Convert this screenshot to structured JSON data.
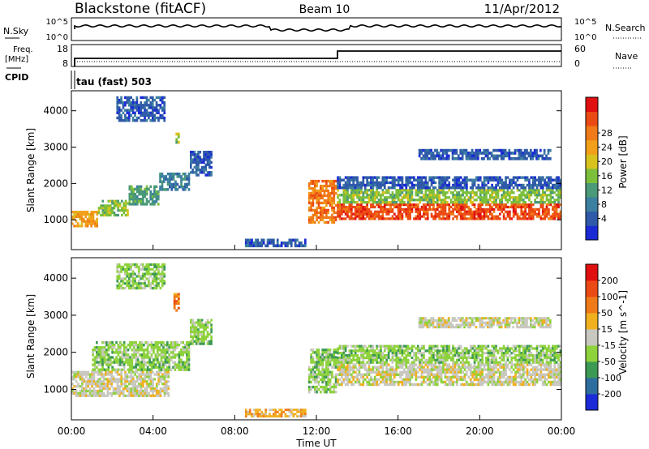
{
  "header": {
    "station": "Blackstone (fitACF)",
    "beam": "Beam 10",
    "date": "11/Apr/2012"
  },
  "noise_panel": {
    "left_label": "N.Sky",
    "right_label": "N.Search",
    "left_ticks": [
      "10^5",
      "10^0"
    ],
    "right_ticks": [
      "10^5",
      "10^0"
    ]
  },
  "freq_panel": {
    "left_label_1": "Freq.",
    "left_label_2": "[MHz]",
    "cpid_label": "CPID",
    "left_ticks": [
      "18",
      "8"
    ],
    "right_label": "Nave",
    "right_ticks": [
      "60",
      "0"
    ]
  },
  "cpid_panel": {
    "text": "tau (fast) 503"
  },
  "time_axis": {
    "ticks": [
      "00:00",
      "04:00",
      "08:00",
      "12:00",
      "16:00",
      "20:00",
      "00:00"
    ],
    "label": "Time UT"
  },
  "chart_data": [
    {
      "type": "heatmap",
      "ylabel": "Slant Range [km]",
      "x_range_hours": [
        0,
        24
      ],
      "ylim": [
        180,
        4550
      ],
      "y_ticks": [
        "1000",
        "2000",
        "3000",
        "4000"
      ],
      "y_tick_values": [
        1000,
        2000,
        3000,
        4000
      ],
      "colorbar": {
        "label": "Power [dB]",
        "ticks": [
          "4",
          "8",
          "12",
          "16",
          "20",
          "24",
          "28"
        ],
        "colors": [
          "#1a2bd6",
          "#2f5aa8",
          "#3c7fa0",
          "#4a9978",
          "#7cbf3a",
          "#d7c21e",
          "#f2a01a",
          "#f07a18",
          "#ec4a14",
          "#e01010"
        ]
      },
      "regions": [
        {
          "t": [
            0.0,
            1.3
          ],
          "r": [
            800,
            1250
          ],
          "level": 6
        },
        {
          "t": [
            1.3,
            2.8
          ],
          "r": [
            1100,
            1550
          ],
          "level": 4
        },
        {
          "t": [
            2.8,
            4.3
          ],
          "r": [
            1400,
            1950
          ],
          "level": 3
        },
        {
          "t": [
            4.3,
            5.8
          ],
          "r": [
            1800,
            2300
          ],
          "level": 2
        },
        {
          "t": [
            5.8,
            6.9
          ],
          "r": [
            2200,
            2900
          ],
          "level": 1
        },
        {
          "t": [
            2.2,
            4.6
          ],
          "r": [
            3700,
            4400
          ],
          "level": 1
        },
        {
          "t": [
            5.0,
            5.3
          ],
          "r": [
            3100,
            3400
          ],
          "level": 4
        },
        {
          "t": [
            8.5,
            11.5
          ],
          "r": [
            250,
            480
          ],
          "level": 1
        },
        {
          "t": [
            11.6,
            13.0
          ],
          "r": [
            900,
            2100
          ],
          "level": 7
        },
        {
          "t": [
            13.0,
            24.0
          ],
          "r": [
            1000,
            1450
          ],
          "level": 8
        },
        {
          "t": [
            13.0,
            24.0
          ],
          "r": [
            1450,
            1850
          ],
          "level": 4
        },
        {
          "t": [
            13.0,
            24.0
          ],
          "r": [
            1850,
            2200
          ],
          "level": 1
        },
        {
          "t": [
            17.0,
            23.5
          ],
          "r": [
            2650,
            2950
          ],
          "level": 1
        }
      ]
    },
    {
      "type": "heatmap",
      "ylabel": "Slant Range [km]",
      "x_range_hours": [
        0,
        24
      ],
      "ylim": [
        180,
        4550
      ],
      "y_ticks": [
        "1000",
        "2000",
        "3000",
        "4000"
      ],
      "y_tick_values": [
        1000,
        2000,
        3000,
        4000
      ],
      "colorbar": {
        "label": "Velocity [m s^-1]",
        "ticks": [
          "200",
          "100",
          "50",
          "15",
          "-15",
          "-50",
          "-100",
          "-200"
        ],
        "colors": [
          "#1b2bd8",
          "#2e6e9e",
          "#3d9a55",
          "#8ed23c",
          "#c8c8c0",
          "#f0b020",
          "#f07a18",
          "#ec4a14",
          "#e01010"
        ]
      },
      "regions": [
        {
          "t": [
            0.0,
            4.8
          ],
          "r": [
            800,
            1500
          ],
          "level": 4
        },
        {
          "t": [
            1.0,
            5.8
          ],
          "r": [
            1500,
            2300
          ],
          "level": 3
        },
        {
          "t": [
            5.8,
            6.9
          ],
          "r": [
            2200,
            2900
          ],
          "level": 3
        },
        {
          "t": [
            2.2,
            4.6
          ],
          "r": [
            3700,
            4400
          ],
          "level": 3
        },
        {
          "t": [
            5.0,
            5.3
          ],
          "r": [
            3100,
            3600
          ],
          "level": 6
        },
        {
          "t": [
            8.5,
            11.5
          ],
          "r": [
            250,
            480
          ],
          "level": 5
        },
        {
          "t": [
            11.6,
            13.0
          ],
          "r": [
            900,
            2100
          ],
          "level": 3
        },
        {
          "t": [
            13.0,
            24.0
          ],
          "r": [
            1100,
            1700
          ],
          "level": 4
        },
        {
          "t": [
            13.0,
            24.0
          ],
          "r": [
            1700,
            2200
          ],
          "level": 3
        },
        {
          "t": [
            17.0,
            23.5
          ],
          "r": [
            2650,
            2950
          ],
          "level": 4
        }
      ]
    }
  ]
}
